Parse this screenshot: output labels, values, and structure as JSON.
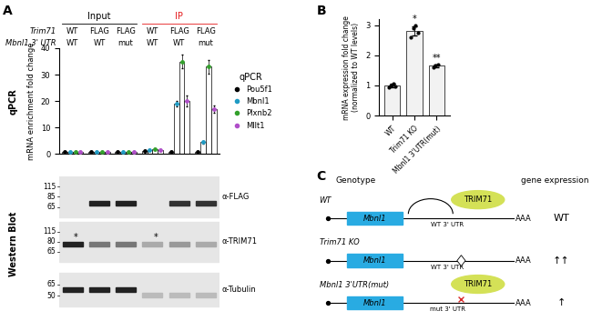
{
  "panel_labels": [
    "A",
    "B",
    "C"
  ],
  "chart_data": [
    {
      "type": "bar",
      "ylabel_outer": "qPCR",
      "ylabel": "mRNA enrichment fold change",
      "groups": [
        {
          "label": "Input",
          "color": "#000000",
          "count": 3
        },
        {
          "label": "IP",
          "color": "#e41a1c",
          "count": 3
        }
      ],
      "header_rows": [
        {
          "label": "Trim71",
          "values": [
            "WT",
            "FLAG",
            "FLAG",
            "WT",
            "FLAG",
            "FLAG"
          ]
        },
        {
          "label": "Mbnl1 3' UTR",
          "values": [
            "WT",
            "WT",
            "mut",
            "WT",
            "WT",
            "mut"
          ]
        }
      ],
      "tick_labels": "y",
      "ylim": [
        0,
        40
      ],
      "yticks": [
        0,
        10,
        20,
        30,
        40
      ],
      "legend": "right",
      "legend_title": "qPCR",
      "series": [
        {
          "name": "Pou5f1",
          "color": "#000000",
          "values": [
            1,
            1,
            1,
            1.2,
            1.0,
            1.0
          ],
          "errors": [
            0.1,
            0.1,
            0.1,
            0.2,
            0.2,
            0.2
          ]
        },
        {
          "name": "Mbnl1",
          "color": "#1f9bc4",
          "values": [
            1,
            1,
            1,
            1.5,
            19,
            4.5
          ],
          "errors": [
            0.1,
            0.1,
            0.1,
            0.3,
            1.0,
            0.5
          ]
        },
        {
          "name": "Plxnb2",
          "color": "#33a02c",
          "values": [
            1,
            1,
            1,
            1.8,
            35,
            33
          ],
          "errors": [
            0.1,
            0.1,
            0.1,
            0.3,
            2.5,
            2.5
          ]
        },
        {
          "name": "Mllt1",
          "color": "#b04fc9",
          "values": [
            1,
            1,
            1,
            1.6,
            20,
            17
          ],
          "errors": [
            0.1,
            0.1,
            0.1,
            0.3,
            2.0,
            1.5
          ]
        }
      ]
    },
    {
      "type": "bar",
      "categories": [
        "WT",
        "Trim71 KO",
        "Mbnl1 3'UTR(mut)"
      ],
      "values": [
        1.0,
        2.8,
        1.65
      ],
      "errors": [
        0.06,
        0.15,
        0.04
      ],
      "points": [
        [
          0.95,
          1.0,
          1.05,
          0.98
        ],
        [
          2.6,
          2.9,
          3.0,
          2.75
        ],
        [
          1.6,
          1.65,
          1.7
        ]
      ],
      "annotations": [
        null,
        "*",
        "**"
      ],
      "ylabel": "mRNA expression fold change\n(normalized to WT levels)",
      "color": "#f2f2f2",
      "ylim": [
        0,
        3.2
      ],
      "yticks": [
        0,
        1,
        2,
        3
      ]
    }
  ],
  "western_blot": {
    "label": "Western Blot",
    "strips": [
      {
        "antibody": "α-FLAG",
        "markers": [
          115,
          85,
          65
        ]
      },
      {
        "antibody": "α-TRIM71",
        "markers": [
          115,
          80,
          65
        ],
        "annotations": [
          "*",
          "*"
        ]
      },
      {
        "antibody": "α-Tubulin",
        "markers": [
          65,
          50
        ]
      }
    ]
  },
  "diagram": {
    "headers": [
      "Genotype",
      "gene expression"
    ],
    "rows": [
      {
        "genotype": "WT",
        "gene": "Mbnl1",
        "utr": "WT 3' UTR",
        "tail": "AAA",
        "protein": "TRIM71",
        "expression": "WT"
      },
      {
        "genotype": "Trim71 KO",
        "gene": "Mbnl1",
        "utr": "WT 3' UTR",
        "tail": "AAA",
        "expression": "↑↑"
      },
      {
        "genotype": "Mbnl1 3'UTR(mut)",
        "gene": "Mbnl1",
        "utr": "mut 3' UTR",
        "tail": "AAA",
        "protein": "TRIM71",
        "expression": "↑"
      }
    ]
  }
}
